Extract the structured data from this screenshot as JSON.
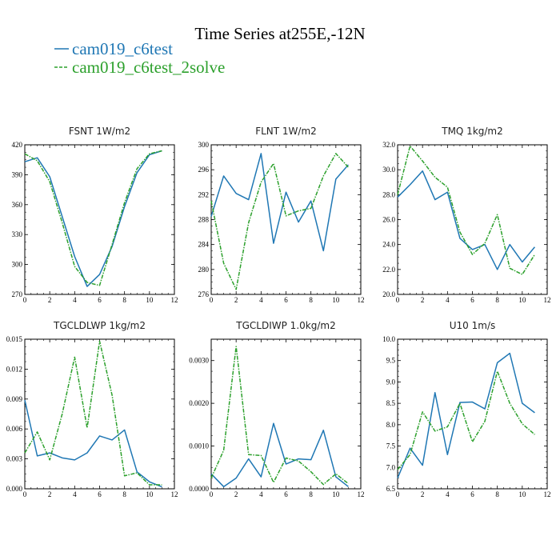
{
  "figure": {
    "title": "Time Series at255E,-12N",
    "legend": [
      {
        "label": "cam019_c6test",
        "color": "#1f77b4",
        "style": "solid"
      },
      {
        "label": "cam019_c6test_2solve",
        "color": "#2ca02c",
        "style": "dashed"
      }
    ]
  },
  "chart_data": [
    {
      "type": "line",
      "title": "FSNT   1W/m2",
      "x": [
        0,
        1,
        2,
        3,
        4,
        5,
        6,
        7,
        8,
        9,
        10,
        11
      ],
      "xlim": [
        0,
        12
      ],
      "xticks": [
        0,
        2,
        4,
        6,
        8,
        10,
        12
      ],
      "ylim": [
        270,
        420
      ],
      "yticks": [
        270,
        300,
        330,
        360,
        390,
        420
      ],
      "ytick_labels": [
        "270",
        "300",
        "330",
        "360",
        "390",
        "420"
      ],
      "series": [
        {
          "name": "cam019_c6test",
          "values": [
            403,
            407,
            388,
            348,
            308,
            278,
            290,
            318,
            358,
            392,
            410,
            414
          ]
        },
        {
          "name": "cam019_c6test_2solve",
          "values": [
            411,
            404,
            383,
            342,
            298,
            282,
            279,
            320,
            362,
            396,
            411,
            414
          ]
        }
      ]
    },
    {
      "type": "line",
      "title": "FLNT   1W/m2",
      "x": [
        0,
        1,
        2,
        3,
        4,
        5,
        6,
        7,
        8,
        9,
        10,
        11
      ],
      "xlim": [
        0,
        12
      ],
      "xticks": [
        0,
        2,
        4,
        6,
        8,
        10,
        12
      ],
      "ylim": [
        276,
        300
      ],
      "yticks": [
        276,
        280,
        284,
        288,
        292,
        296,
        300
      ],
      "ytick_labels": [
        "276",
        "280",
        "284",
        "288",
        "292",
        "296",
        "300"
      ],
      "series": [
        {
          "name": "cam019_c6test",
          "values": [
            288.5,
            295,
            292.2,
            291.2,
            298.6,
            284.2,
            292.4,
            287.6,
            291,
            283,
            294.5,
            296.8
          ]
        },
        {
          "name": "cam019_c6test_2solve",
          "values": [
            291,
            281,
            276.8,
            287.5,
            294,
            297,
            288.6,
            289.4,
            289.8,
            295,
            298.6,
            296.4
          ]
        }
      ]
    },
    {
      "type": "line",
      "title": "TMQ   1kg/m2",
      "x": [
        0,
        1,
        2,
        3,
        4,
        5,
        6,
        7,
        8,
        9,
        10,
        11
      ],
      "xlim": [
        0,
        12
      ],
      "xticks": [
        0,
        2,
        4,
        6,
        8,
        10,
        12
      ],
      "ylim": [
        20,
        32
      ],
      "yticks": [
        20,
        22,
        24,
        26,
        28,
        30,
        32
      ],
      "ytick_labels": [
        "20.0",
        "22.0",
        "24.0",
        "26.0",
        "28.0",
        "30.0",
        "32.0"
      ],
      "series": [
        {
          "name": "cam019_c6test",
          "values": [
            27.8,
            28.8,
            29.9,
            27.6,
            28.2,
            24.5,
            23.6,
            24,
            22,
            24,
            22.6,
            23.8
          ]
        },
        {
          "name": "cam019_c6test_2solve",
          "values": [
            28,
            31.9,
            30.7,
            29.4,
            28.6,
            25,
            23.2,
            24.1,
            26.4,
            22.1,
            21.6,
            23.2
          ]
        }
      ]
    },
    {
      "type": "line",
      "title": "TGCLDLWP   1kg/m2",
      "x": [
        0,
        1,
        2,
        3,
        4,
        5,
        6,
        7,
        8,
        9,
        10,
        11
      ],
      "xlim": [
        0,
        12
      ],
      "xticks": [
        0,
        2,
        4,
        6,
        8,
        10,
        12
      ],
      "ylim": [
        0,
        0.015
      ],
      "yticks": [
        0,
        0.003,
        0.006,
        0.009,
        0.012,
        0.015
      ],
      "ytick_labels": [
        "0.000",
        "0.003",
        "0.006",
        "0.009",
        "0.012",
        "0.015"
      ],
      "series": [
        {
          "name": "cam019_c6test",
          "values": [
            0.0089,
            0.0033,
            0.0036,
            0.0031,
            0.0029,
            0.0036,
            0.0053,
            0.0049,
            0.0059,
            0.0017,
            0.0007,
            0.0002
          ]
        },
        {
          "name": "cam019_c6test_2solve",
          "values": [
            0.0036,
            0.0057,
            0.0029,
            0.0075,
            0.0132,
            0.0061,
            0.0148,
            0.0094,
            0.0013,
            0.0016,
            0.0004,
            0.0004
          ]
        }
      ]
    },
    {
      "type": "line",
      "title": "TGCLDIWP   1.0kg/m2",
      "x": [
        0,
        1,
        2,
        3,
        4,
        5,
        6,
        7,
        8,
        9,
        10,
        11
      ],
      "xlim": [
        0,
        12
      ],
      "xticks": [
        0,
        2,
        4,
        6,
        8,
        10,
        12
      ],
      "ylim": [
        0,
        0.0035
      ],
      "yticks": [
        0,
        0.001,
        0.002,
        0.003
      ],
      "ytick_labels": [
        "0.0000",
        "0.0010",
        "0.0020",
        "0.0030"
      ],
      "series": [
        {
          "name": "cam019_c6test",
          "values": [
            0.00035,
            5e-05,
            0.00025,
            0.0007,
            0.00028,
            0.00153,
            0.00058,
            0.0007,
            0.00068,
            0.00137,
            0.00028,
            5e-05
          ]
        },
        {
          "name": "cam019_c6test_2solve",
          "values": [
            0.00025,
            0.0009,
            0.00333,
            0.0008,
            0.00078,
            0.00015,
            0.00072,
            0.00065,
            0.0004,
            0.0001,
            0.00035,
            0.00012
          ]
        }
      ]
    },
    {
      "type": "line",
      "title": "U10   1m/s",
      "x": [
        0,
        1,
        2,
        3,
        4,
        5,
        6,
        7,
        8,
        9,
        10,
        11
      ],
      "xlim": [
        0,
        12
      ],
      "xticks": [
        0,
        2,
        4,
        6,
        8,
        10,
        12
      ],
      "ylim": [
        6.5,
        10
      ],
      "yticks": [
        6.5,
        7,
        7.5,
        8,
        8.5,
        9,
        9.5,
        10
      ],
      "ytick_labels": [
        "6.5",
        "7.0",
        "7.5",
        "8.0",
        "8.5",
        "9.0",
        "9.5",
        "10.0"
      ],
      "series": [
        {
          "name": "cam019_c6test",
          "values": [
            6.75,
            7.45,
            7.05,
            8.75,
            7.3,
            8.52,
            8.53,
            8.37,
            9.45,
            9.67,
            8.5,
            8.28
          ]
        },
        {
          "name": "cam019_c6test_2solve",
          "values": [
            6.95,
            7.3,
            8.3,
            7.85,
            7.95,
            8.5,
            7.6,
            8.08,
            9.25,
            8.5,
            8.02,
            7.77
          ]
        }
      ]
    }
  ]
}
